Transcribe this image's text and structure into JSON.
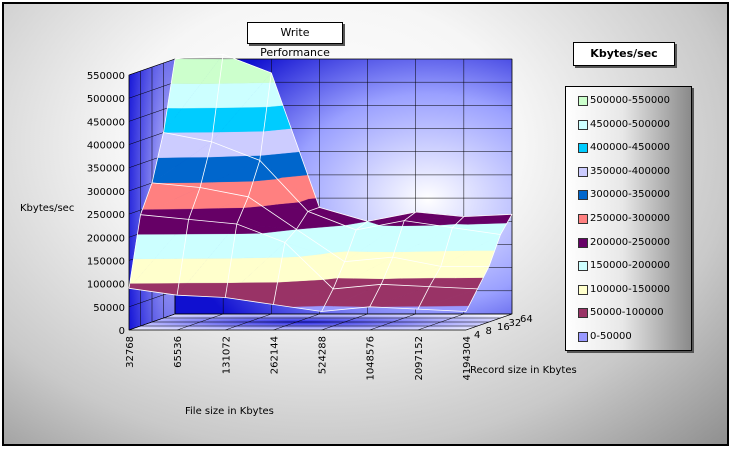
{
  "chart_data": {
    "type": "surface-3d",
    "title": "Write Performance",
    "zlabel": "Kbytes/sec",
    "xlabel": "File size in Kbytes",
    "ylabel": "Record size in Kbytes",
    "legend_title": "Kbytes/sec",
    "zlim": [
      0,
      550000
    ],
    "z_ticks": [
      "0",
      "50000",
      "100000",
      "150000",
      "200000",
      "250000",
      "300000",
      "350000",
      "400000",
      "450000",
      "500000",
      "550000"
    ],
    "file_sizes": [
      "32768",
      "65536",
      "131072",
      "262144",
      "524288",
      "1048576",
      "2097152",
      "4194304"
    ],
    "record_sizes": [
      "4",
      "8",
      "16",
      "32",
      "64"
    ],
    "values": [
      [
        90000,
        75000,
        70000,
        55000,
        40000,
        50000,
        45000,
        40000
      ],
      [
        240000,
        230000,
        220000,
        180000,
        80000,
        90000,
        85000,
        80000
      ],
      [
        300000,
        290000,
        270000,
        200000,
        130000,
        140000,
        120000,
        120000
      ],
      [
        400000,
        380000,
        340000,
        230000,
        190000,
        210000,
        195000,
        180000
      ],
      [
        550000,
        560000,
        520000,
        230000,
        200000,
        220000,
        210000,
        215000
      ]
    ],
    "legend": [
      {
        "label": "500000-550000",
        "color": "#ccffcc"
      },
      {
        "label": "450000-500000",
        "color": "#ccffff"
      },
      {
        "label": "400000-450000",
        "color": "#00ccff"
      },
      {
        "label": "350000-400000",
        "color": "#ccccff"
      },
      {
        "label": "300000-350000",
        "color": "#0066cc"
      },
      {
        "label": "250000-300000",
        "color": "#ff8080"
      },
      {
        "label": "200000-250000",
        "color": "#660066"
      },
      {
        "label": "150000-200000",
        "color": "#ccffff"
      },
      {
        "label": "100000-150000",
        "color": "#ffffcc"
      },
      {
        "label": "50000-100000",
        "color": "#993366"
      },
      {
        "label": "0-50000",
        "color": "#9999ff"
      }
    ],
    "grid": true,
    "legend_position": "right"
  }
}
